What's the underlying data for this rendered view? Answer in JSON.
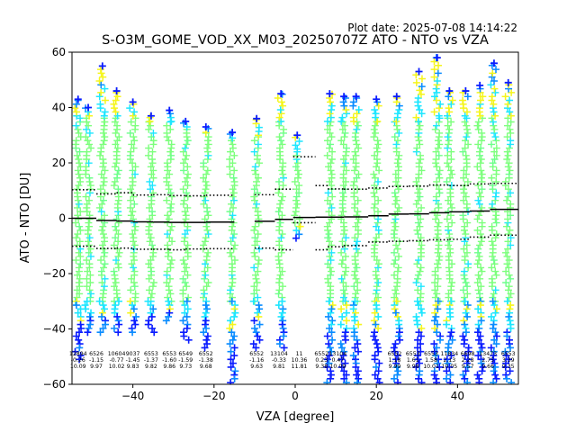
{
  "plot_date": "Plot date: 2025-07-08 14:14:22",
  "chart_data": {
    "type": "scatter",
    "title": "S-O3M_GOME_VOD_XX_M03_20250707Z ATO - NTO vs VZA",
    "xlabel": "VZA [degree]",
    "ylabel": "ATO - NTO [DU]",
    "xlim": [
      -55,
      55
    ],
    "ylim": [
      -60,
      60
    ],
    "xticks": [
      -40,
      -20,
      0,
      20,
      40
    ],
    "yticks": [
      -60,
      -40,
      -20,
      0,
      20,
      40,
      60
    ],
    "grid": false,
    "legend": "none",
    "marker": "+",
    "color_scale": [
      "#0a1cff",
      "#0a8cff",
      "#1ee6ff",
      "#6dff8a",
      "#7dff7d",
      "#f5f51c"
    ],
    "scatter_columns": [
      {
        "vza": -53.5,
        "low": -52,
        "high": 43,
        "core_low": -30,
        "core_high": 37
      },
      {
        "vza": -51,
        "low": -42,
        "high": 40,
        "core_low": -30,
        "core_high": 37
      },
      {
        "vza": -47.5,
        "low": -42,
        "high": 55,
        "core_low": -30,
        "core_high": 37
      },
      {
        "vza": -44,
        "low": -42,
        "high": 46,
        "core_low": -30,
        "core_high": 37
      },
      {
        "vza": -40,
        "low": -42,
        "high": 42,
        "core_low": -30,
        "core_high": 37
      },
      {
        "vza": -35.5,
        "low": -42,
        "high": 37,
        "core_low": -30,
        "core_high": 35
      },
      {
        "vza": -31,
        "low": -38,
        "high": 39,
        "core_low": -30,
        "core_high": 35
      },
      {
        "vza": -27,
        "low": -45,
        "high": 35,
        "core_low": -30,
        "core_high": 33
      },
      {
        "vza": -22,
        "low": -47,
        "high": 33,
        "core_low": -30,
        "core_high": 31
      },
      {
        "vza": -15.5,
        "low": -60,
        "high": 31,
        "core_low": -30,
        "core_high": 29
      },
      {
        "vza": -9.5,
        "low": -48,
        "high": 36,
        "core_low": -30,
        "core_high": 30
      },
      {
        "vza": -3.5,
        "low": -48,
        "high": 45,
        "core_low": -30,
        "core_high": 35
      },
      {
        "vza": 0.5,
        "low": -8,
        "high": 30,
        "core_low": -3,
        "core_high": 25
      },
      {
        "vza": 8.5,
        "low": -60,
        "high": 45,
        "core_low": -30,
        "core_high": 35
      },
      {
        "vza": 12,
        "low": -60,
        "high": 44,
        "core_low": -30,
        "core_high": 35
      },
      {
        "vza": 15,
        "low": -60,
        "high": 44,
        "core_low": -30,
        "core_high": 35
      },
      {
        "vza": 20,
        "low": -60,
        "high": 43,
        "core_low": -30,
        "core_high": 35
      },
      {
        "vza": 25,
        "low": -60,
        "high": 44,
        "core_low": -30,
        "core_high": 35
      },
      {
        "vza": 30.5,
        "low": -60,
        "high": 53,
        "core_low": -30,
        "core_high": 35
      },
      {
        "vza": 35,
        "low": -60,
        "high": 58,
        "core_low": -30,
        "core_high": 37
      },
      {
        "vza": 38,
        "low": -60,
        "high": 46,
        "core_low": -30,
        "core_high": 37
      },
      {
        "vza": 42,
        "low": -60,
        "high": 46,
        "core_low": -30,
        "core_high": 37
      },
      {
        "vza": 45.5,
        "low": -60,
        "high": 48,
        "core_low": -30,
        "core_high": 37
      },
      {
        "vza": 49,
        "low": -60,
        "high": 56,
        "core_low": -30,
        "core_high": 37
      },
      {
        "vza": 52.5,
        "low": -60,
        "high": 49,
        "core_low": -30,
        "core_high": 37
      }
    ],
    "mean_line": [
      {
        "x0": -55,
        "x1": -49,
        "y": 0
      },
      {
        "x0": -49,
        "x1": -44,
        "y": -0.8
      },
      {
        "x0": -44,
        "x1": -40,
        "y": -1
      },
      {
        "x0": -40,
        "x1": -35,
        "y": -1.3
      },
      {
        "x0": -35,
        "x1": -31,
        "y": -1.4
      },
      {
        "x0": -31,
        "x1": -27,
        "y": -1.5
      },
      {
        "x0": -27,
        "x1": -22,
        "y": -1.5
      },
      {
        "x0": -22,
        "x1": -15,
        "y": -1.4
      },
      {
        "x0": -10,
        "x1": -5,
        "y": -1.1
      },
      {
        "x0": -5,
        "x1": -0.5,
        "y": -0.4
      },
      {
        "x0": -0.5,
        "x1": 5,
        "y": 0.3
      },
      {
        "x0": 5,
        "x1": 8,
        "y": 0.4
      },
      {
        "x0": 8,
        "x1": 12,
        "y": 0.4
      },
      {
        "x0": 12,
        "x1": 18,
        "y": 0.5
      },
      {
        "x0": 18,
        "x1": 23,
        "y": 0.9
      },
      {
        "x0": 23,
        "x1": 28,
        "y": 1.5
      },
      {
        "x0": 28,
        "x1": 33,
        "y": 1.6
      },
      {
        "x0": 33,
        "x1": 38,
        "y": 2.0
      },
      {
        "x0": 38,
        "x1": 43,
        "y": 2.3
      },
      {
        "x0": 43,
        "x1": 48,
        "y": 2.6
      },
      {
        "x0": 48,
        "x1": 55,
        "y": 3.2
      }
    ],
    "upper_band": [
      {
        "x0": -55,
        "x1": -49,
        "y": 10.3
      },
      {
        "x0": -49,
        "x1": -44,
        "y": 8.8
      },
      {
        "x0": -44,
        "x1": -40,
        "y": 9.2
      },
      {
        "x0": -40,
        "x1": -35,
        "y": 8.4
      },
      {
        "x0": -35,
        "x1": -31,
        "y": 8.5
      },
      {
        "x0": -31,
        "x1": -27,
        "y": 8.2
      },
      {
        "x0": -27,
        "x1": -22,
        "y": 8.1
      },
      {
        "x0": -22,
        "x1": -15,
        "y": 8.3
      },
      {
        "x0": -10,
        "x1": -5,
        "y": 8.5
      },
      {
        "x0": -5,
        "x1": -0.5,
        "y": 10.5
      },
      {
        "x0": -0.5,
        "x1": 5,
        "y": 22.2
      },
      {
        "x0": 5,
        "x1": 8,
        "y": 11.8
      },
      {
        "x0": 8,
        "x1": 12,
        "y": 10.6
      },
      {
        "x0": 12,
        "x1": 18,
        "y": 10.5
      },
      {
        "x0": 18,
        "x1": 23,
        "y": 10.9
      },
      {
        "x0": 23,
        "x1": 28,
        "y": 11.5
      },
      {
        "x0": 28,
        "x1": 33,
        "y": 11.6
      },
      {
        "x0": 33,
        "x1": 38,
        "y": 12.0
      },
      {
        "x0": 38,
        "x1": 43,
        "y": 11.8
      },
      {
        "x0": 43,
        "x1": 48,
        "y": 12.4
      },
      {
        "x0": 48,
        "x1": 55,
        "y": 12.6
      }
    ],
    "lower_band": [
      {
        "x0": -55,
        "x1": -49,
        "y": -10.1
      },
      {
        "x0": -49,
        "x1": -44,
        "y": -10.9
      },
      {
        "x0": -44,
        "x1": -40,
        "y": -10.8
      },
      {
        "x0": -40,
        "x1": -35,
        "y": -11.2
      },
      {
        "x0": -35,
        "x1": -31,
        "y": -11.2
      },
      {
        "x0": -31,
        "x1": -27,
        "y": -11.4
      },
      {
        "x0": -27,
        "x1": -22,
        "y": -11.1
      },
      {
        "x0": -22,
        "x1": -15,
        "y": -11.0
      },
      {
        "x0": -10,
        "x1": -5,
        "y": -10.8
      },
      {
        "x0": -5,
        "x1": -0.5,
        "y": -11.4
      },
      {
        "x0": -0.5,
        "x1": 5,
        "y": -1.6
      },
      {
        "x0": 5,
        "x1": 8,
        "y": -11.4
      },
      {
        "x0": 8,
        "x1": 12,
        "y": -10.3
      },
      {
        "x0": 12,
        "x1": 18,
        "y": -9.9
      },
      {
        "x0": 18,
        "x1": 23,
        "y": -8.6
      },
      {
        "x0": 23,
        "x1": 28,
        "y": -8.3
      },
      {
        "x0": 28,
        "x1": 33,
        "y": -8.1
      },
      {
        "x0": 33,
        "x1": 38,
        "y": -7.8
      },
      {
        "x0": 38,
        "x1": 43,
        "y": -7.6
      },
      {
        "x0": 43,
        "x1": 48,
        "y": -6.8
      },
      {
        "x0": 48,
        "x1": 55,
        "y": -6.1
      }
    ],
    "bin_stats": [
      {
        "x": -53.5,
        "count": "12894",
        "mean": "-0.26",
        "std": "10.09"
      },
      {
        "x": -49,
        "count": "6526",
        "mean": "-1.15",
        "std": "9.97"
      },
      {
        "x": -44,
        "count": "10604",
        "mean": "-0.77",
        "std": "10.02"
      },
      {
        "x": -40,
        "count": "9037",
        "mean": "-1.45",
        "std": "9.83"
      },
      {
        "x": -35.5,
        "count": "6553",
        "mean": "-1.37",
        "std": "9.82"
      },
      {
        "x": -31,
        "count": "6553",
        "mean": "-1.60",
        "std": "9.86"
      },
      {
        "x": -27,
        "count": "6549",
        "mean": "-1.59",
        "std": "9.73"
      },
      {
        "x": -22,
        "count": "6552",
        "mean": "-1.38",
        "std": "9.68"
      },
      {
        "x": -9.5,
        "count": "6552",
        "mean": "-1.16",
        "std": "9.63"
      },
      {
        "x": -4,
        "count": "13104",
        "mean": "-0.33",
        "std": "9.81"
      },
      {
        "x": 1,
        "count": "11",
        "mean": "10.36",
        "std": "11.81"
      },
      {
        "x": 6.5,
        "count": "6552",
        "mean": "0.23",
        "std": "9.38"
      },
      {
        "x": 10.5,
        "count": "13104",
        "mean": "0.47",
        "std": "10.09"
      },
      {
        "x": 24.5,
        "count": "6552",
        "mean": "1.18",
        "std": "9.99"
      },
      {
        "x": 29,
        "count": "6553",
        "mean": "1.61",
        "std": "9.98"
      },
      {
        "x": 33.5,
        "count": "6553",
        "mean": "1.58",
        "std": "10.01"
      },
      {
        "x": 38,
        "count": "11834",
        "mean": "2.13",
        "std": "10.05"
      },
      {
        "x": 42.5,
        "count": "6698",
        "mean": "2.28",
        "std": "9.57"
      },
      {
        "x": 47.5,
        "count": "13473",
        "mean": "2.75",
        "std": "9.66"
      },
      {
        "x": 52.5,
        "count": "6553",
        "mean": "3.39",
        "std": "9.35"
      }
    ]
  }
}
